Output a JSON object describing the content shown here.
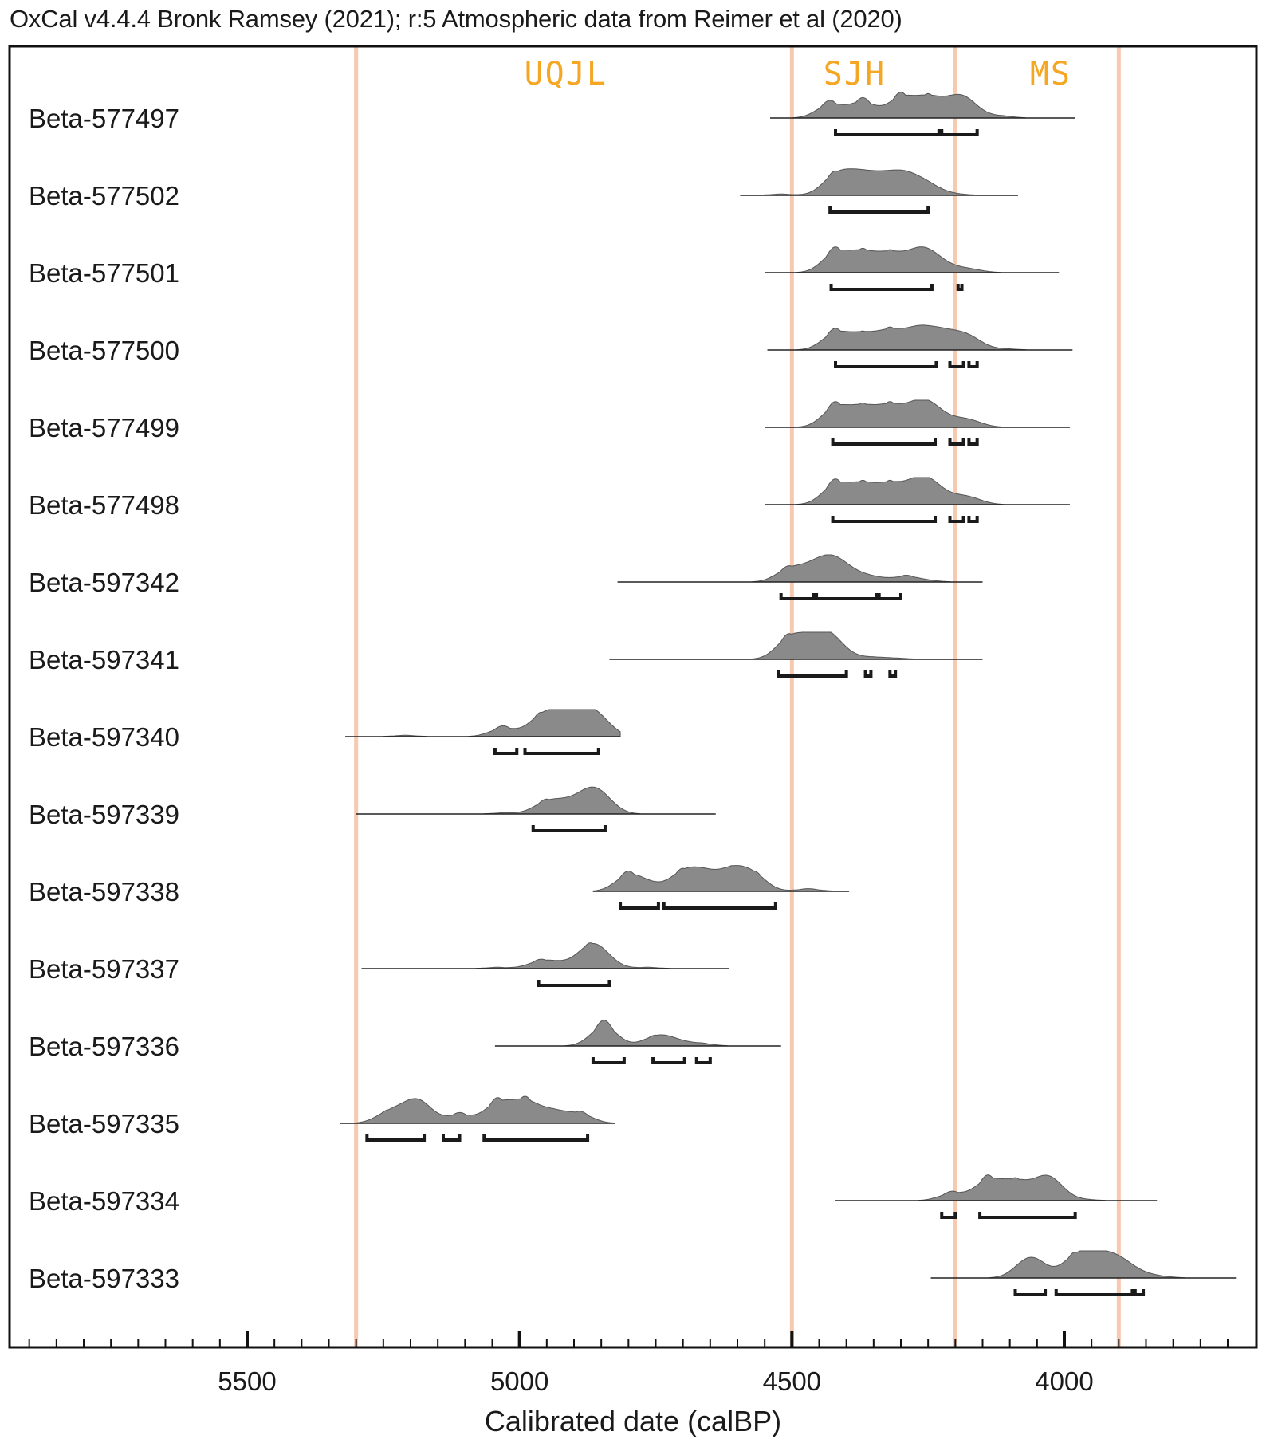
{
  "header": {
    "text": "OxCal v4.4.4 Bronk Ramsey (2021); r:5 Atmospheric data from Reimer et al (2020)"
  },
  "colors": {
    "boundary": "#f7c9b0",
    "phase_label": "#f5a623",
    "density_fill": "#8a8a8a",
    "frame": "#111111"
  },
  "chart_data": {
    "type": "area",
    "xlabel": "Calibrated date (calBP)",
    "ylabel": "",
    "x_reversed": true,
    "xlim": [
      5900,
      3650
    ],
    "x_ticks_major": [
      5500,
      5000,
      4500,
      4000
    ],
    "x_tick_labels": [
      "5500",
      "5000",
      "4500",
      "4000"
    ],
    "x_ticks_minor_step": 50,
    "boundaries": [
      5300,
      4500,
      4200,
      3900
    ],
    "phase_labels": [
      {
        "text": "UQJL",
        "x": 4915
      },
      {
        "text": "SJH",
        "x": 4385
      },
      {
        "text": "MS",
        "x": 4025
      }
    ],
    "samples": [
      {
        "name": "Beta-577497",
        "baseline": [
          4540,
          3980
        ],
        "peaks": [
          [
            4430,
            0.65
          ],
          [
            4370,
            0.75
          ],
          [
            4300,
            0.95
          ],
          [
            4250,
            0.9
          ],
          [
            4205,
            0.55
          ],
          [
            4180,
            0.7
          ],
          [
            4120,
            0.1
          ]
        ],
        "ranges": [
          [
            4420,
            4230
          ],
          [
            4225,
            4160
          ]
        ]
      },
      {
        "name": "Beta-577502",
        "baseline": [
          4595,
          4085
        ],
        "peaks": [
          [
            4520,
            0.05
          ],
          [
            4420,
            0.9
          ],
          [
            4380,
            0.85
          ],
          [
            4340,
            0.75
          ],
          [
            4300,
            0.85
          ],
          [
            4265,
            0.5
          ],
          [
            4240,
            0.2
          ],
          [
            4200,
            0.05
          ]
        ],
        "ranges": [
          [
            4430,
            4250
          ]
        ]
      },
      {
        "name": "Beta-577501",
        "baseline": [
          4550,
          4010
        ],
        "peaks": [
          [
            4420,
            0.95
          ],
          [
            4370,
            0.9
          ],
          [
            4320,
            0.85
          ],
          [
            4270,
            0.85
          ],
          [
            4240,
            0.6
          ],
          [
            4200,
            0.15
          ],
          [
            4170,
            0.12
          ]
        ],
        "ranges": [
          [
            4428,
            4243
          ],
          [
            4195,
            4188
          ]
        ]
      },
      {
        "name": "Beta-577500",
        "baseline": [
          4545,
          3985
        ],
        "peaks": [
          [
            4420,
            0.8
          ],
          [
            4370,
            0.7
          ],
          [
            4320,
            0.85
          ],
          [
            4270,
            0.9
          ],
          [
            4230,
            0.7
          ],
          [
            4195,
            0.45
          ],
          [
            4170,
            0.4
          ],
          [
            4110,
            0.05
          ]
        ],
        "ranges": [
          [
            4420,
            4235
          ],
          [
            4210,
            4185
          ],
          [
            4175,
            4160
          ]
        ]
      },
      {
        "name": "Beta-577499",
        "baseline": [
          4550,
          3990
        ],
        "peaks": [
          [
            4420,
            0.95
          ],
          [
            4370,
            0.9
          ],
          [
            4320,
            0.95
          ],
          [
            4270,
            0.92
          ],
          [
            4240,
            0.7
          ],
          [
            4195,
            0.25
          ],
          [
            4170,
            0.22
          ]
        ],
        "ranges": [
          [
            4425,
            4237
          ],
          [
            4210,
            4185
          ],
          [
            4175,
            4160
          ]
        ]
      },
      {
        "name": "Beta-577498",
        "baseline": [
          4550,
          3990
        ],
        "peaks": [
          [
            4420,
            0.95
          ],
          [
            4370,
            0.9
          ],
          [
            4320,
            0.9
          ],
          [
            4270,
            0.95
          ],
          [
            4240,
            0.7
          ],
          [
            4195,
            0.25
          ],
          [
            4170,
            0.22
          ]
        ],
        "ranges": [
          [
            4425,
            4237
          ],
          [
            4210,
            4185
          ],
          [
            4175,
            4160
          ]
        ]
      },
      {
        "name": "Beta-597342",
        "baseline": [
          4820,
          4150
        ],
        "peaks": [
          [
            4505,
            0.6
          ],
          [
            4460,
            0.65
          ],
          [
            4425,
            0.95
          ],
          [
            4390,
            0.35
          ],
          [
            4350,
            0.2
          ],
          [
            4290,
            0.25
          ],
          [
            4250,
            0.05
          ]
        ],
        "ranges": [
          [
            4520,
            4460
          ],
          [
            4455,
            4345
          ],
          [
            4340,
            4300
          ]
        ]
      },
      {
        "name": "Beta-597341",
        "baseline": [
          4835,
          4150
        ],
        "peaks": [
          [
            4505,
            0.95
          ],
          [
            4470,
            0.55
          ],
          [
            4440,
            0.95
          ],
          [
            4415,
            0.4
          ],
          [
            4355,
            0.1
          ],
          [
            4310,
            0.05
          ]
        ],
        "ranges": [
          [
            4525,
            4400
          ],
          [
            4365,
            4355
          ],
          [
            4320,
            4310
          ]
        ]
      },
      {
        "name": "Beta-597340",
        "baseline": [
          5320,
          4815
        ],
        "peaks": [
          [
            5210,
            0.05
          ],
          [
            5030,
            0.4
          ],
          [
            4960,
            0.9
          ],
          [
            4920,
            0.95
          ],
          [
            4880,
            1.0
          ],
          [
            4850,
            0.6
          ]
        ],
        "ranges": [
          [
            5045,
            5005
          ],
          [
            4990,
            4855
          ]
        ]
      },
      {
        "name": "Beta-597339",
        "baseline": [
          5300,
          4640
        ],
        "peaks": [
          [
            5025,
            0.05
          ],
          [
            4950,
            0.55
          ],
          [
            4910,
            0.45
          ],
          [
            4870,
            0.9
          ],
          [
            4845,
            0.5
          ]
        ],
        "ranges": [
          [
            4975,
            4843
          ]
        ]
      },
      {
        "name": "Beta-597338",
        "baseline": [
          4865,
          4395
        ],
        "peaks": [
          [
            4800,
            0.75
          ],
          [
            4760,
            0.3
          ],
          [
            4700,
            0.85
          ],
          [
            4660,
            0.8
          ],
          [
            4610,
            0.95
          ],
          [
            4570,
            0.75
          ],
          [
            4470,
            0.1
          ]
        ],
        "ranges": [
          [
            4815,
            4745
          ],
          [
            4735,
            4530
          ]
        ]
      },
      {
        "name": "Beta-597337",
        "baseline": [
          5290,
          4615
        ],
        "peaks": [
          [
            5040,
            0.05
          ],
          [
            4960,
            0.35
          ],
          [
            4920,
            0.2
          ],
          [
            4870,
            0.95
          ],
          [
            4845,
            0.4
          ],
          [
            4765,
            0.05
          ]
        ],
        "ranges": [
          [
            4965,
            4835
          ]
        ]
      },
      {
        "name": "Beta-597336",
        "baseline": [
          5045,
          4520
        ],
        "peaks": [
          [
            4845,
            0.95
          ],
          [
            4750,
            0.4
          ],
          [
            4720,
            0.25
          ],
          [
            4670,
            0.12
          ]
        ],
        "ranges": [
          [
            4865,
            4808
          ],
          [
            4755,
            4697
          ],
          [
            4675,
            4650
          ]
        ]
      },
      {
        "name": "Beta-597335",
        "baseline": [
          5330,
          4825
        ],
        "peaks": [
          [
            5240,
            0.5
          ],
          [
            5200,
            0.55
          ],
          [
            5180,
            0.7
          ],
          [
            5110,
            0.4
          ],
          [
            5040,
            0.95
          ],
          [
            4990,
            1.0
          ],
          [
            4940,
            0.55
          ],
          [
            4890,
            0.45
          ]
        ],
        "ranges": [
          [
            5280,
            5175
          ],
          [
            5140,
            5110
          ],
          [
            5065,
            4875
          ]
        ]
      },
      {
        "name": "Beta-597334",
        "baseline": [
          4420,
          3830
        ],
        "peaks": [
          [
            4205,
            0.35
          ],
          [
            4140,
            0.95
          ],
          [
            4090,
            0.85
          ],
          [
            4040,
            0.7
          ],
          [
            4020,
            0.6
          ],
          [
            3965,
            0.05
          ]
        ],
        "ranges": [
          [
            4225,
            4200
          ],
          [
            4155,
            3980
          ]
        ]
      },
      {
        "name": "Beta-597333",
        "baseline": [
          4245,
          3685
        ],
        "peaks": [
          [
            4070,
            0.6
          ],
          [
            4050,
            0.5
          ],
          [
            3980,
            0.95
          ],
          [
            3940,
            0.95
          ],
          [
            3900,
            0.8
          ],
          [
            3860,
            0.2
          ],
          [
            3820,
            0.05
          ]
        ],
        "ranges": [
          [
            4090,
            4035
          ],
          [
            4015,
            3875
          ],
          [
            3870,
            3855
          ]
        ]
      }
    ]
  }
}
